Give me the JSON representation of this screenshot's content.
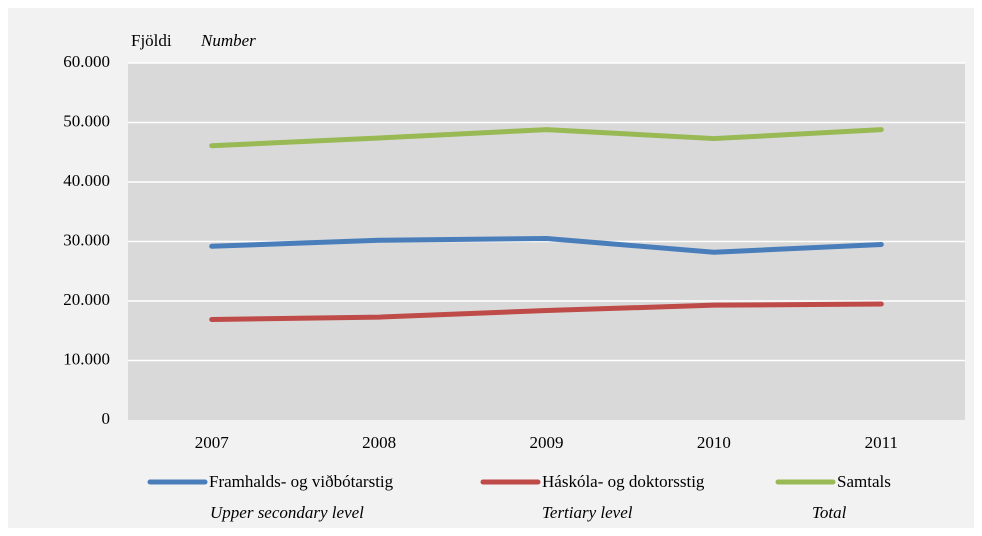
{
  "chart_data": {
    "type": "line",
    "y_label": "Fjöldi",
    "y_label_en": "Number",
    "categories": [
      "2007",
      "2008",
      "2009",
      "2010",
      "2011"
    ],
    "series": [
      {
        "name": "Framhalds- og viðbótarstig",
        "name_en": "Upper secondary level",
        "color": "#4a7ebb",
        "values": [
          29200,
          30200,
          30500,
          28200,
          29500
        ]
      },
      {
        "name": "Háskóla- og doktorsstig",
        "name_en": "Tertiary level",
        "color": "#be4b48",
        "values": [
          16900,
          17300,
          18400,
          19300,
          19500
        ]
      },
      {
        "name": "Samtals",
        "name_en": "Total",
        "color": "#98b954",
        "values": [
          46100,
          47400,
          48800,
          47300,
          48800
        ]
      }
    ],
    "ylim": [
      0,
      60000
    ],
    "yticks": [
      0,
      {
        "value": 10000,
        "label": "10.000"
      },
      {
        "value": 20000,
        "label": "20.000"
      },
      {
        "value": 30000,
        "label": "30.000"
      },
      {
        "value": 40000,
        "label": "40.000"
      },
      {
        "value": 50000,
        "label": "50.000"
      },
      {
        "value": 60000,
        "label": "60.000"
      }
    ],
    "grid": true
  }
}
